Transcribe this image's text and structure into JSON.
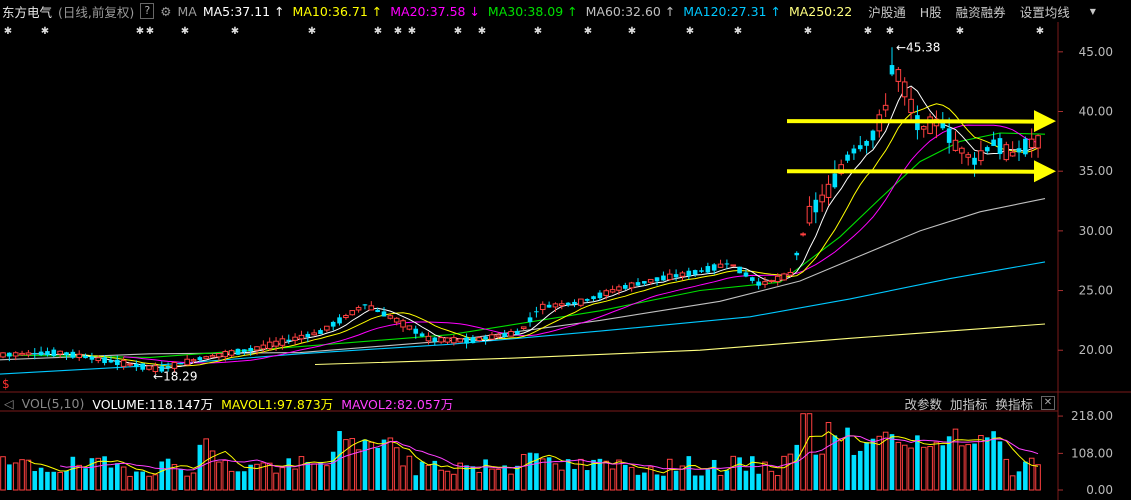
{
  "header": {
    "stock_name": "东方电气",
    "mode": "(日线,前复权)",
    "help": "?",
    "ma_label": "MA",
    "ma_items": [
      {
        "text": "MA5:37.11",
        "arrow": "↑",
        "color": "#ffffff"
      },
      {
        "text": "MA10:36.71",
        "arrow": "↑",
        "color": "#ffff00"
      },
      {
        "text": "MA20:37.58",
        "arrow": "↓",
        "color": "#ff00ff"
      },
      {
        "text": "MA30:38.09",
        "arrow": "↑",
        "color": "#00e000"
      },
      {
        "text": "MA60:32.60",
        "arrow": "↑",
        "color": "#c0c0c0"
      },
      {
        "text": "MA120:27.31",
        "arrow": "↑",
        "color": "#00c8ff"
      },
      {
        "text": "MA250:22",
        "arrow": "",
        "color": "#ffff80"
      }
    ],
    "menu": [
      "沪股通",
      "H股",
      "融资融券",
      "设置均线"
    ]
  },
  "volume_header": {
    "label": "VOL(5,10)",
    "volume": "VOLUME:118.147万",
    "mavol1": "MAVOL1:97.873万",
    "mavol2": "MAVOL2:82.057万",
    "buttons": [
      "改参数",
      "加指标",
      "换指标"
    ]
  },
  "colors": {
    "up": "#ff4040",
    "down": "#00e0ff",
    "ma5": "#ffffff",
    "ma10": "#ffff00",
    "ma20": "#ff00ff",
    "ma30": "#00e000",
    "ma60": "#c0c0c0",
    "ma120": "#00c8ff",
    "ma250": "#ffff80",
    "arrow": "#ffff00"
  },
  "chart_data": [
    {
      "type": "candlestick",
      "y_ticks": [
        "45.00",
        "40.00",
        "35.00",
        "30.00",
        "25.00",
        "20.00"
      ],
      "ylim": [
        16.5,
        47.5
      ],
      "annotations": [
        {
          "text": "←45.38",
          "value": 45.38
        },
        {
          "text": "←18.29",
          "value": 18.29
        }
      ],
      "horizontal_arrows": [
        39.2,
        35.0
      ],
      "ma_lines": {
        "ma250": {
          "x": [
            315,
            500,
            700,
            850,
            1045
          ],
          "y": [
            18.8,
            19.3,
            20.0,
            21.0,
            22.2
          ]
        },
        "ma120": {
          "x": [
            0,
            150,
            300,
            450,
            600,
            750,
            850,
            950,
            1045
          ],
          "y": [
            18.0,
            18.7,
            19.7,
            20.5,
            21.6,
            22.8,
            24.3,
            26.0,
            27.4
          ]
        },
        "ma60": {
          "x": [
            0,
            150,
            300,
            450,
            600,
            720,
            800,
            860,
            920,
            980,
            1045
          ],
          "y": [
            19.2,
            19.7,
            19.8,
            20.8,
            22.5,
            24.1,
            25.8,
            27.9,
            30.0,
            31.6,
            32.7
          ]
        },
        "ma30": {
          "x": [
            0,
            150,
            300,
            450,
            600,
            700,
            780,
            840,
            880,
            920,
            960,
            1000,
            1045
          ],
          "y": [
            19.6,
            19.4,
            20.3,
            21.3,
            23.3,
            25.0,
            25.7,
            29.5,
            32.7,
            35.8,
            37.5,
            38.2,
            38.1
          ]
        }
      }
    },
    {
      "type": "bar",
      "title": "VOL(5,10)",
      "y_ticks": [
        "218.00",
        "108.00",
        "0.00"
      ],
      "ylim": [
        0,
        230
      ],
      "series": [
        {
          "name": "VOLUME",
          "value": 118.147
        },
        {
          "name": "MAVOL1",
          "value": 97.873
        },
        {
          "name": "MAVOL2",
          "value": 82.057
        }
      ]
    }
  ]
}
